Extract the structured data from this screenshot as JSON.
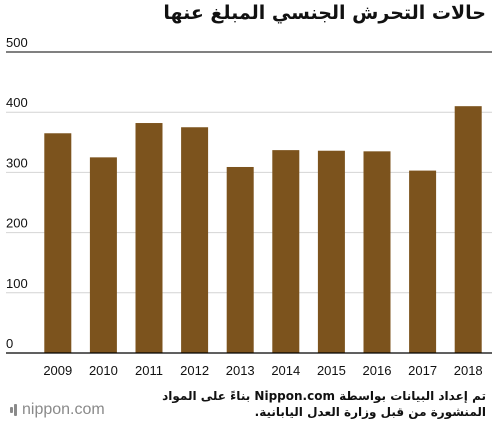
{
  "header": {
    "title": "حالات التحرش الجنسي المبلغ عنها"
  },
  "footer": {
    "source": "تم إعداد البيانات بواسطة Nippon.com بناءً على المواد المنشورة من قبل وزارة العدل اليابانية.",
    "brand": "nippon.com"
  },
  "colors": {
    "bar": "#7c531d",
    "axis": "#000000",
    "grid": "#d4d4d4"
  },
  "chart_data": {
    "type": "bar",
    "title": "حالات التحرش الجنسي المبلغ عنها",
    "categories": [
      "2009",
      "2010",
      "2011",
      "2012",
      "2013",
      "2014",
      "2015",
      "2016",
      "2017",
      "2018"
    ],
    "values": [
      365,
      325,
      382,
      375,
      309,
      337,
      336,
      335,
      303,
      410
    ],
    "ylim": [
      0,
      500
    ],
    "yticks": [
      0,
      100,
      200,
      300,
      400,
      500
    ],
    "grid": true,
    "legend": "none"
  }
}
